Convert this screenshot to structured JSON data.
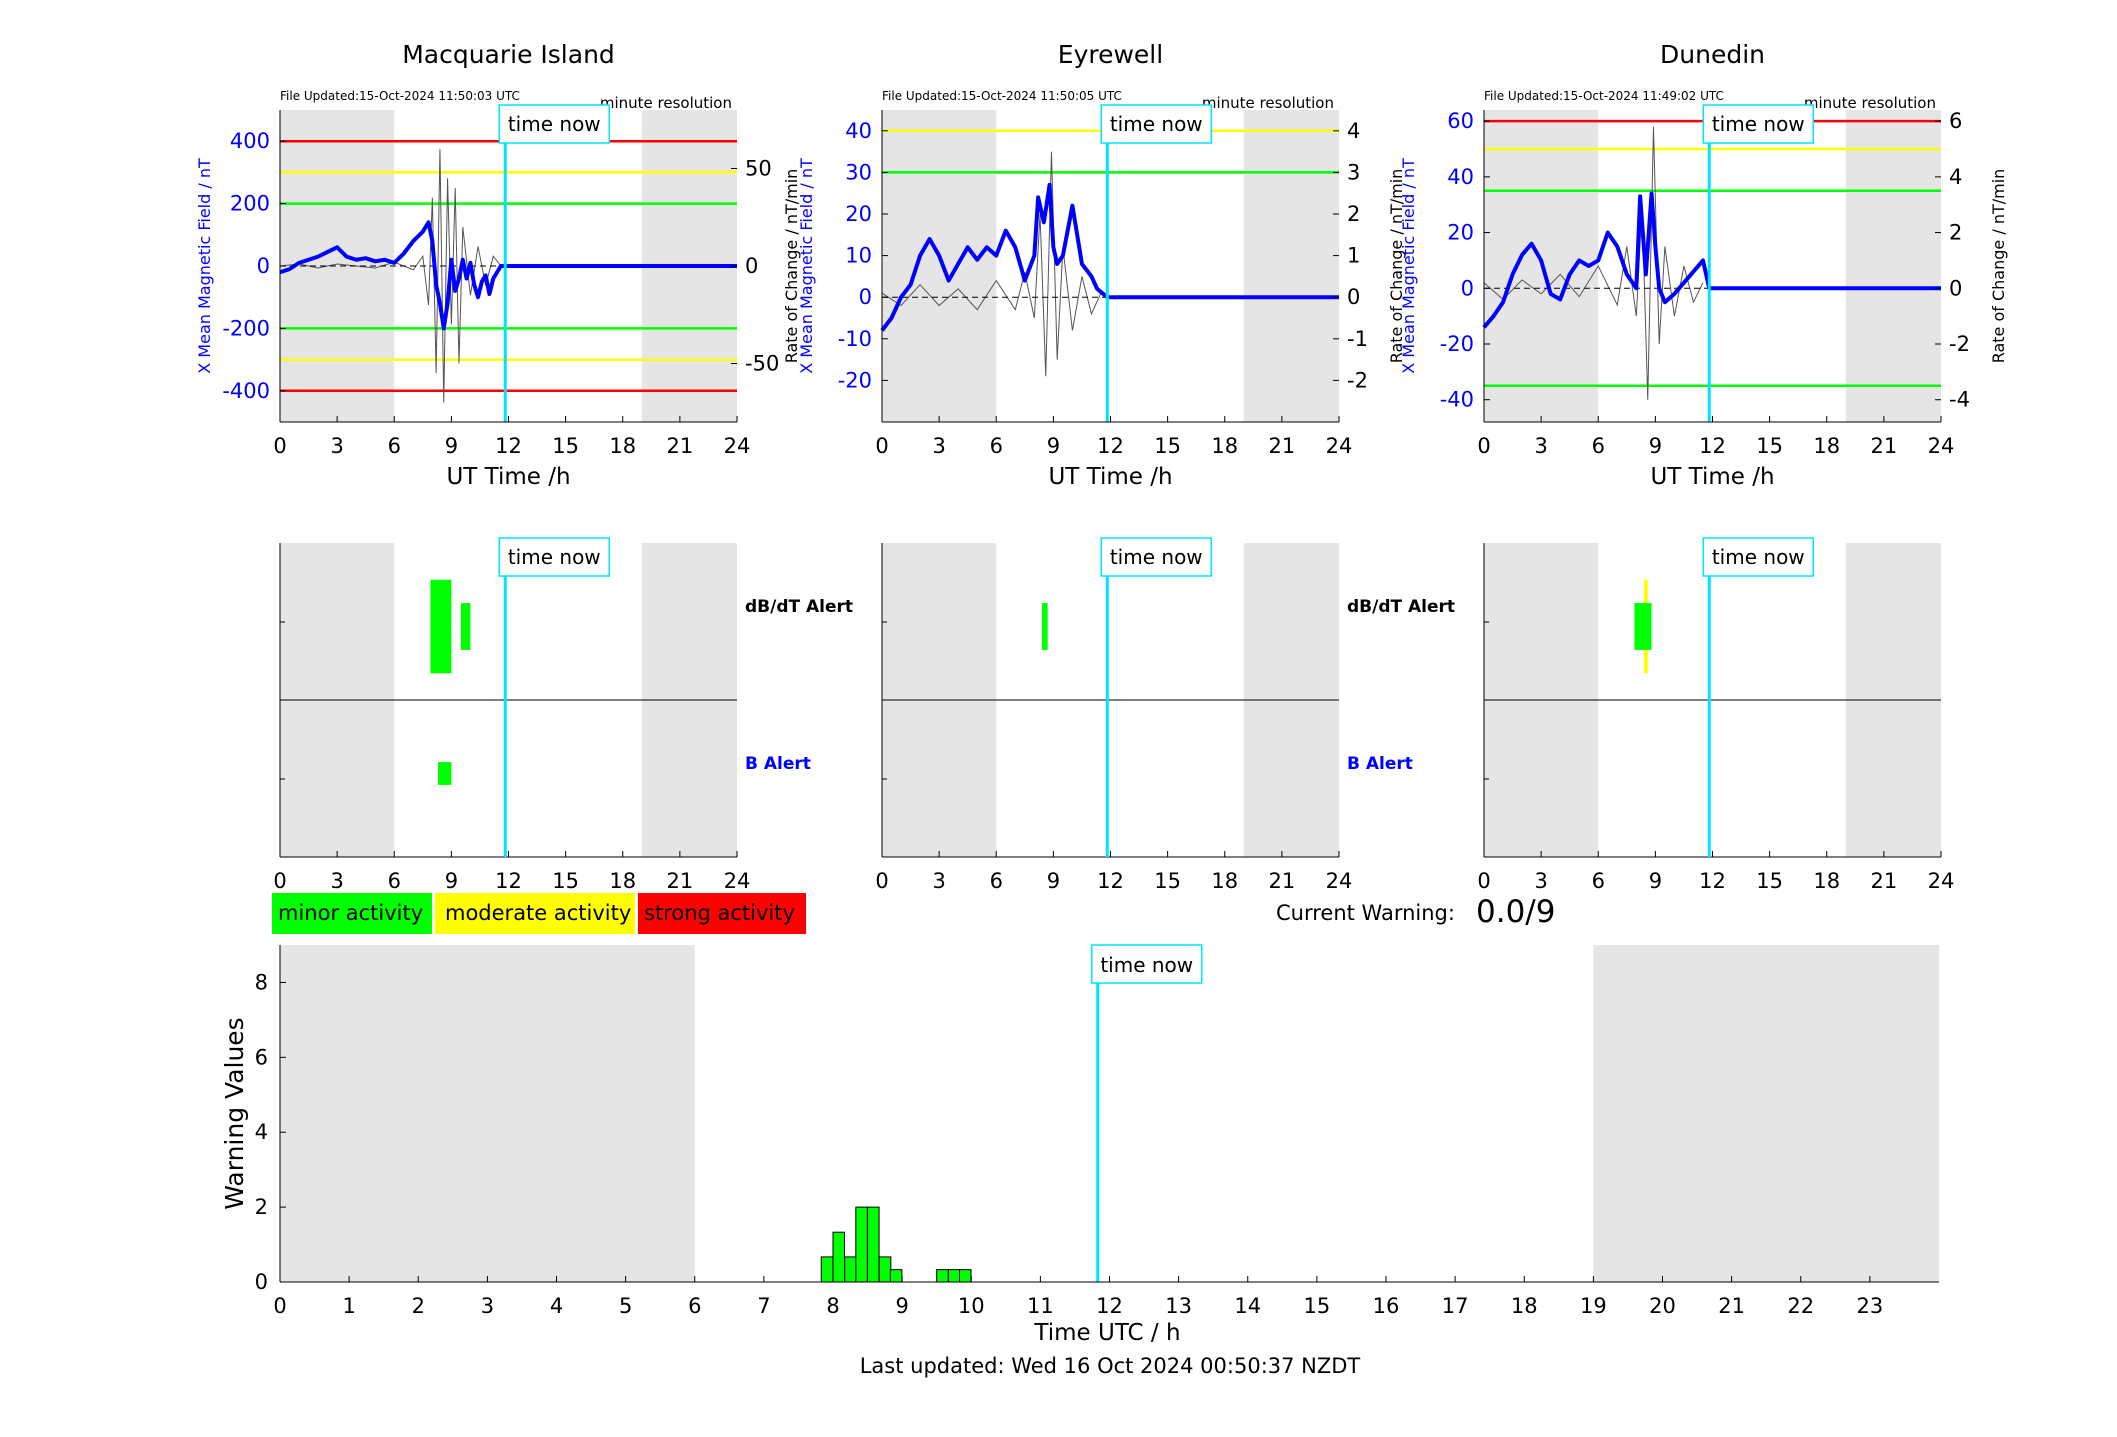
{
  "stations": [
    {
      "name": "Macquarie Island",
      "file_updated": "File Updated:15-Oct-2024 11:50:03 UTC",
      "resolution": "minute resolution",
      "left_ylabel": "X Mean Magnetic Field / nT",
      "right_ylabel": "",
      "left_ticks": [
        400,
        200,
        0,
        -200,
        -400
      ],
      "right_ticks": [
        50,
        0,
        -50
      ]
    },
    {
      "name": "Eyrewell",
      "file_updated": "File Updated:15-Oct-2024 11:50:05 UTC",
      "resolution": "minute resolution",
      "left_ylabel": "X Mean Magnetic Field / nT",
      "right_ylabel": "Rate of Change / nT/min",
      "left_ticks": [
        40,
        30,
        20,
        10,
        0,
        -10,
        -20
      ],
      "right_ticks": [
        4,
        3,
        2,
        1,
        0,
        -1,
        -2
      ]
    },
    {
      "name": "Dunedin",
      "file_updated": "File Updated:15-Oct-2024 11:49:02 UTC",
      "resolution": "minute resolution",
      "left_ylabel": "X Mean Magnetic Field / nT",
      "right_ylabel": "Rate of Change / nT/min",
      "left_ticks": [
        60,
        40,
        20,
        0,
        -20,
        -40
      ],
      "right_ticks": [
        6,
        4,
        2,
        0,
        -2,
        -4
      ]
    }
  ],
  "rate_label_first": "Rate of Change / nT/min",
  "time_now_label": "time now",
  "xlabel_top": "UT Time /h",
  "hour_ticks": [
    "0",
    "3",
    "6",
    "9",
    "12",
    "15",
    "18",
    "21",
    "24"
  ],
  "alert_labels": {
    "dbdt": "dB/dT Alert",
    "b": "B Alert"
  },
  "legend": {
    "minor": "minor activity",
    "moderate": "moderate activity",
    "strong": "strong activity"
  },
  "current_warning_label": "Current Warning:",
  "current_warning_value": "0.0/9",
  "colors": {
    "field": "#0000ff",
    "rate": "#555555",
    "now": "#00e5ff",
    "night": "#e5e5e5",
    "minor": "#00ff00",
    "moderate": "#ffff00",
    "strong": "#ff0000"
  },
  "chart_data": [
    {
      "type": "line",
      "title": "Macquarie Island",
      "xlabel": "UT Time /h",
      "ylabel": "X Mean Magnetic Field / nT",
      "xlim": [
        0,
        24
      ],
      "ylim": [
        -500,
        500
      ],
      "y2lim": [
        -80,
        80
      ],
      "night_bands": [
        [
          0,
          6
        ],
        [
          19,
          24
        ]
      ],
      "time_now": 11.83,
      "thresholds": [
        {
          "level": "strong",
          "values": [
            400,
            -400
          ]
        },
        {
          "level": "moderate",
          "values": [
            300,
            -300
          ]
        },
        {
          "level": "minor",
          "values": [
            200,
            -200
          ]
        }
      ],
      "series": [
        {
          "name": "X Mean Magnetic Field",
          "x": [
            0,
            0.5,
            1,
            1.5,
            2,
            2.5,
            3,
            3.5,
            4,
            4.5,
            5,
            5.5,
            6,
            6.5,
            7,
            7.5,
            7.8,
            8,
            8.2,
            8.4,
            8.6,
            8.8,
            9,
            9.2,
            9.4,
            9.6,
            9.8,
            10,
            10.2,
            10.4,
            10.6,
            10.8,
            11,
            11.2,
            11.4,
            11.6,
            11.83,
            24
          ],
          "y": [
            -20,
            -10,
            10,
            20,
            30,
            45,
            60,
            30,
            20,
            25,
            15,
            20,
            10,
            40,
            80,
            110,
            140,
            80,
            -60,
            -120,
            -200,
            -120,
            20,
            -80,
            -40,
            20,
            -40,
            10,
            -60,
            -100,
            -50,
            -30,
            -90,
            -40,
            -20,
            0,
            0,
            0
          ]
        },
        {
          "name": "Rate of Change",
          "axis": "right",
          "x": [
            0,
            1,
            2,
            3,
            4,
            5,
            6,
            7,
            7.5,
            7.8,
            8,
            8.2,
            8.4,
            8.6,
            8.8,
            9,
            9.2,
            9.4,
            9.6,
            10,
            10.4,
            10.8,
            11.2,
            11.6
          ],
          "y": [
            0,
            1,
            -1,
            1,
            0,
            -1,
            2,
            -2,
            5,
            -20,
            35,
            -55,
            60,
            -70,
            45,
            -30,
            40,
            -50,
            20,
            -15,
            10,
            -10,
            5,
            0
          ]
        }
      ]
    },
    {
      "type": "line",
      "title": "Eyrewell",
      "xlabel": "UT Time /h",
      "ylabel": "X Mean Magnetic Field / nT",
      "y2label": "Rate of Change / nT/min",
      "xlim": [
        0,
        24
      ],
      "ylim": [
        -30,
        45
      ],
      "y2lim": [
        -3,
        4.5
      ],
      "night_bands": [
        [
          0,
          6
        ],
        [
          19,
          24
        ]
      ],
      "time_now": 11.83,
      "thresholds": [
        {
          "level": "moderate",
          "values": [
            40
          ]
        },
        {
          "level": "minor",
          "values": [
            30
          ]
        }
      ],
      "series": [
        {
          "name": "X Mean Magnetic Field",
          "x": [
            0,
            0.5,
            1,
            1.5,
            2,
            2.5,
            3,
            3.5,
            4,
            4.5,
            5,
            5.5,
            6,
            6.5,
            7,
            7.5,
            8,
            8.2,
            8.5,
            8.8,
            9,
            9.2,
            9.5,
            10,
            10.5,
            11,
            11.3,
            11.83,
            24
          ],
          "y": [
            -8,
            -5,
            0,
            3,
            10,
            14,
            10,
            4,
            8,
            12,
            9,
            12,
            10,
            16,
            12,
            4,
            10,
            24,
            18,
            27,
            12,
            8,
            10,
            22,
            8,
            5,
            2,
            0,
            0
          ]
        },
        {
          "name": "Rate of Change",
          "axis": "right",
          "x": [
            0,
            1,
            2,
            3,
            4,
            5,
            6,
            7,
            7.5,
            8,
            8.3,
            8.6,
            8.9,
            9.2,
            9.5,
            10,
            10.5,
            11,
            11.5
          ],
          "y": [
            0.1,
            -0.2,
            0.3,
            -0.2,
            0.2,
            -0.3,
            0.4,
            -0.3,
            0.6,
            -0.5,
            2,
            -1.9,
            3.5,
            -1.5,
            1.2,
            -0.8,
            0.5,
            -0.4,
            0.1
          ]
        }
      ]
    },
    {
      "type": "line",
      "title": "Dunedin",
      "xlabel": "UT Time /h",
      "ylabel": "X Mean Magnetic Field / nT",
      "y2label": "Rate of Change / nT/min",
      "xlim": [
        0,
        24
      ],
      "ylim": [
        -48,
        64
      ],
      "y2lim": [
        -4.8,
        6.4
      ],
      "night_bands": [
        [
          0,
          6
        ],
        [
          19,
          24
        ]
      ],
      "time_now": 11.83,
      "thresholds": [
        {
          "level": "strong",
          "values": [
            60
          ]
        },
        {
          "level": "moderate",
          "values": [
            50
          ]
        },
        {
          "level": "minor",
          "values": [
            35,
            -35
          ]
        }
      ],
      "series": [
        {
          "name": "X Mean Magnetic Field",
          "x": [
            0,
            0.5,
            1,
            1.5,
            2,
            2.5,
            3,
            3.5,
            4,
            4.5,
            5,
            5.5,
            6,
            6.5,
            7,
            7.5,
            8,
            8.2,
            8.5,
            8.8,
            9,
            9.2,
            9.5,
            10,
            10.5,
            11,
            11.5,
            11.83,
            24
          ],
          "y": [
            -14,
            -10,
            -5,
            5,
            12,
            16,
            10,
            -2,
            -4,
            5,
            10,
            8,
            10,
            20,
            15,
            5,
            0,
            33,
            5,
            34,
            15,
            0,
            -5,
            -2,
            2,
            6,
            10,
            0,
            0
          ]
        },
        {
          "name": "Rate of Change",
          "axis": "right",
          "x": [
            0,
            1,
            2,
            3,
            4,
            5,
            6,
            7,
            7.5,
            8,
            8.3,
            8.6,
            8.9,
            9.2,
            9.5,
            10,
            10.5,
            11,
            11.5
          ],
          "y": [
            0.2,
            -0.4,
            0.3,
            -0.2,
            0.5,
            -0.3,
            0.8,
            -0.6,
            1.5,
            -1,
            3,
            -4,
            5.8,
            -2,
            1.5,
            -1,
            0.8,
            -0.5,
            0.2
          ]
        }
      ]
    },
    {
      "type": "bar",
      "title": "",
      "xlabel": "Time UTC / h",
      "ylabel": "Warning Values",
      "xlim": [
        0,
        24
      ],
      "ylim": [
        0,
        9
      ],
      "x_ticks": [
        "0",
        "1",
        "2",
        "3",
        "4",
        "5",
        "6",
        "7",
        "8",
        "9",
        "10",
        "11",
        "12",
        "13",
        "14",
        "15",
        "16",
        "17",
        "18",
        "19",
        "20",
        "21",
        "22",
        "23"
      ],
      "y_ticks": [
        "0",
        "2",
        "4",
        "6",
        "8"
      ],
      "night_bands": [
        [
          0,
          6
        ],
        [
          19,
          24
        ]
      ],
      "time_now": 11.83,
      "bin_width": 0.1667,
      "x": [
        7.83,
        8.0,
        8.17,
        8.33,
        8.5,
        8.67,
        8.83,
        9.5,
        9.67,
        9.83
      ],
      "values": [
        0.67,
        1.33,
        0.67,
        2.0,
        2.0,
        0.67,
        0.33,
        0.33,
        0.33,
        0.33
      ]
    }
  ],
  "alerts": [
    {
      "dbdt": [
        {
          "x0": 8.3,
          "x1": 9.0,
          "level": "strong",
          "y0": 0.45,
          "y1": 0.55
        },
        {
          "x0": 8.3,
          "x1": 9.0,
          "level": "moderate",
          "y0": 0.3,
          "y1": 0.7
        },
        {
          "x0": 7.9,
          "x1": 9.0,
          "level": "minor",
          "y0": 0.1,
          "y1": 0.9
        },
        {
          "x0": 9.5,
          "x1": 10.0,
          "level": "minor",
          "y0": 0.3,
          "y1": 0.7
        }
      ],
      "b": [
        {
          "x0": 8.3,
          "x1": 9.0,
          "level": "minor",
          "y0": 0.3,
          "y1": 0.7
        }
      ]
    },
    {
      "dbdt": [
        {
          "x0": 8.4,
          "x1": 8.7,
          "level": "minor",
          "y0": 0.3,
          "y1": 0.7
        }
      ],
      "b": []
    },
    {
      "dbdt": [
        {
          "x0": 8.4,
          "x1": 8.6,
          "level": "moderate",
          "y0": 0.1,
          "y1": 0.9
        },
        {
          "x0": 7.9,
          "x1": 8.8,
          "level": "minor",
          "y0": 0.3,
          "y1": 0.7
        }
      ],
      "b": []
    }
  ],
  "footer": "Last updated: Wed 16 Oct 2024 00:50:37 NZDT"
}
